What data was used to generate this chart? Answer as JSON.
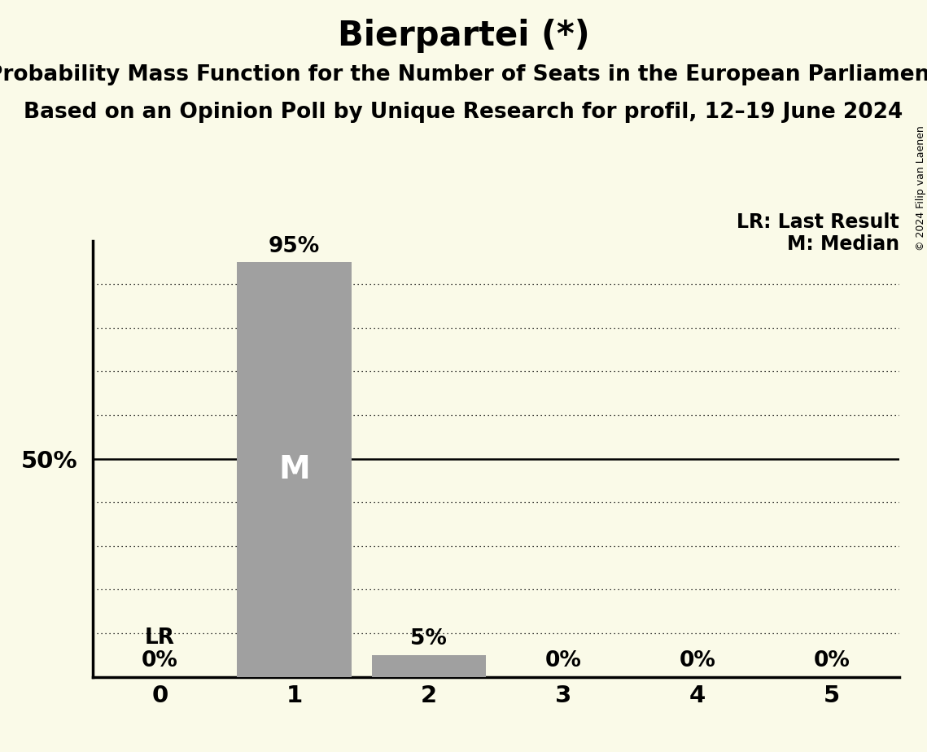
{
  "title": "Bierpartei (*)",
  "subtitle1": "Probability Mass Function for the Number of Seats in the European Parliament",
  "subtitle2": "Based on an Opinion Poll by Unique Research for profil, 12–19 June 2024",
  "copyright": "© 2024 Filip van Laenen",
  "categories": [
    0,
    1,
    2,
    3,
    4,
    5
  ],
  "values": [
    0.0,
    0.95,
    0.05,
    0.0,
    0.0,
    0.0
  ],
  "bar_color": "#a0a0a0",
  "bar_labels": [
    "0%",
    "95%",
    "5%",
    "0%",
    "0%",
    "0%"
  ],
  "median_seat": 1,
  "lr_seat": 0,
  "background_color": "#fafae8",
  "y_label_50": "50%",
  "ylim": [
    0,
    1.0
  ],
  "yticks": [
    0.1,
    0.2,
    0.3,
    0.4,
    0.5,
    0.6,
    0.7,
    0.8,
    0.9
  ],
  "legend_lr": "LR: Last Result",
  "legend_m": "M: Median",
  "title_fontsize": 30,
  "subtitle_fontsize": 19,
  "label_fontsize": 19,
  "axis_fontsize": 21,
  "annotation_fontsize": 17,
  "median_label_fontsize": 28
}
